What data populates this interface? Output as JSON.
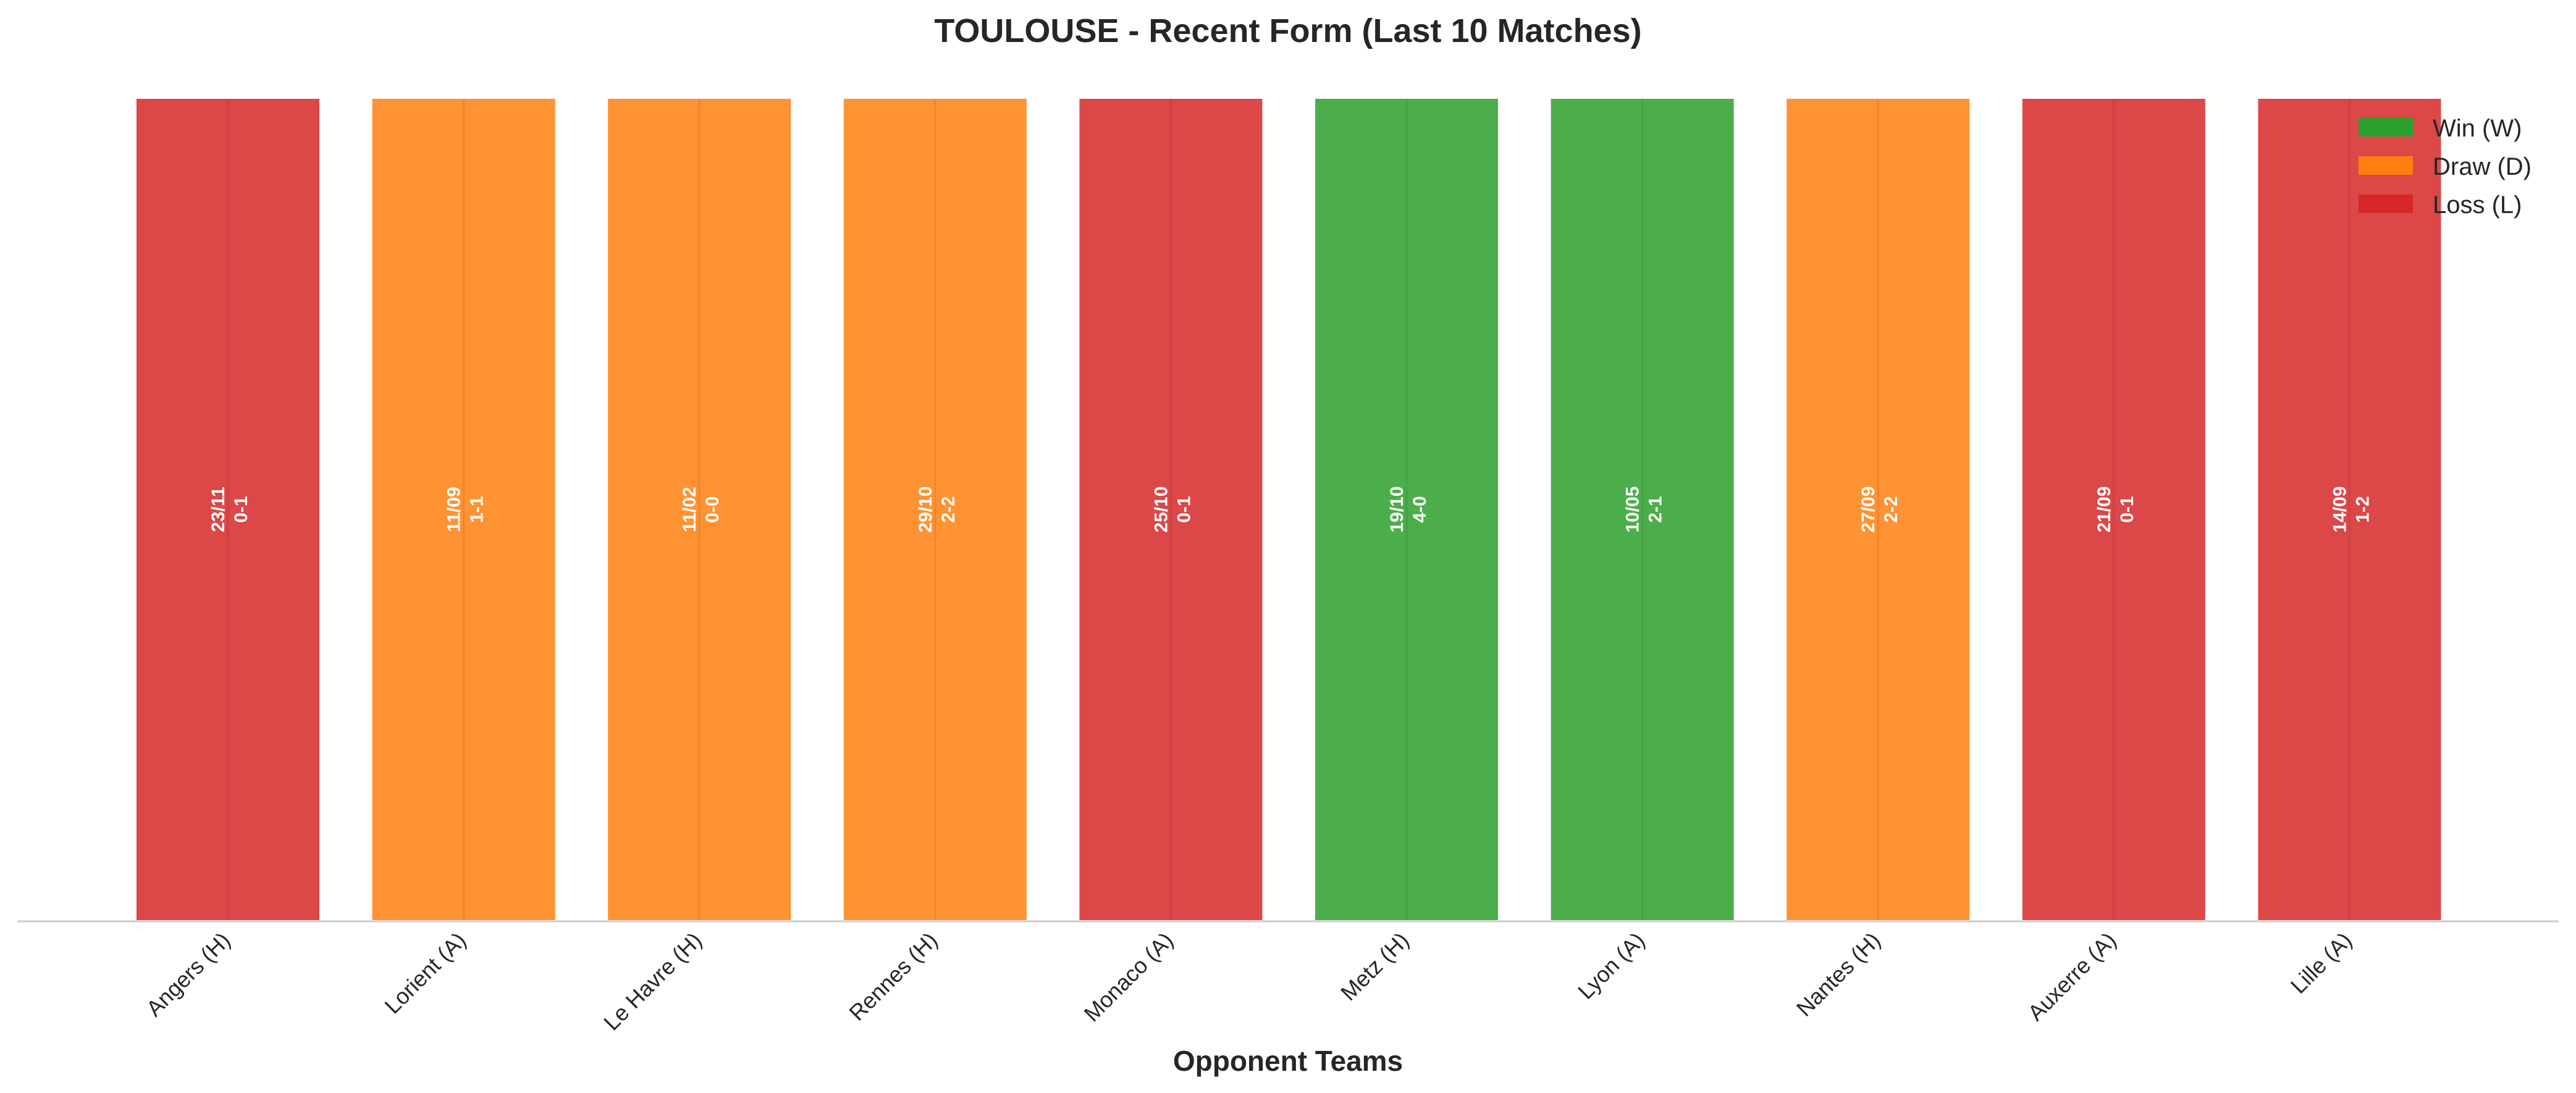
{
  "chart_data": {
    "type": "bar",
    "title": "TOULOUSE - Recent Form (Last 10 Matches)",
    "xlabel": "Opponent Teams",
    "ylabel": "",
    "ylim": [
      0,
      1
    ],
    "grid": false,
    "legend_position": "top-right",
    "categories": [
      "Angers (H)",
      "Lorient (A)",
      "Le Havre (H)",
      "Rennes (H)",
      "Monaco (A)",
      "Metz (H)",
      "Lyon (A)",
      "Nantes (H)",
      "Auxerre (A)",
      "Lille (A)"
    ],
    "values": [
      1,
      1,
      1,
      1,
      1,
      1,
      1,
      1,
      1,
      1
    ],
    "results": [
      "L",
      "D",
      "D",
      "D",
      "L",
      "W",
      "W",
      "D",
      "L",
      "L"
    ],
    "dates": [
      "23/11",
      "11/09",
      "11/02",
      "29/10",
      "25/10",
      "19/10",
      "10/05",
      "27/09",
      "21/09",
      "14/09"
    ],
    "scores": [
      "0-1",
      "1-1",
      "0-0",
      "2-2",
      "0-1",
      "4-0",
      "2-1",
      "2-2",
      "0-1",
      "1-2"
    ],
    "legend": [
      {
        "key": "W",
        "label": "Win (W)",
        "color": "#2ca02c"
      },
      {
        "key": "D",
        "label": "Draw (D)",
        "color": "#ff7f0e"
      },
      {
        "key": "L",
        "label": "Loss (L)",
        "color": "#d62728"
      }
    ]
  }
}
